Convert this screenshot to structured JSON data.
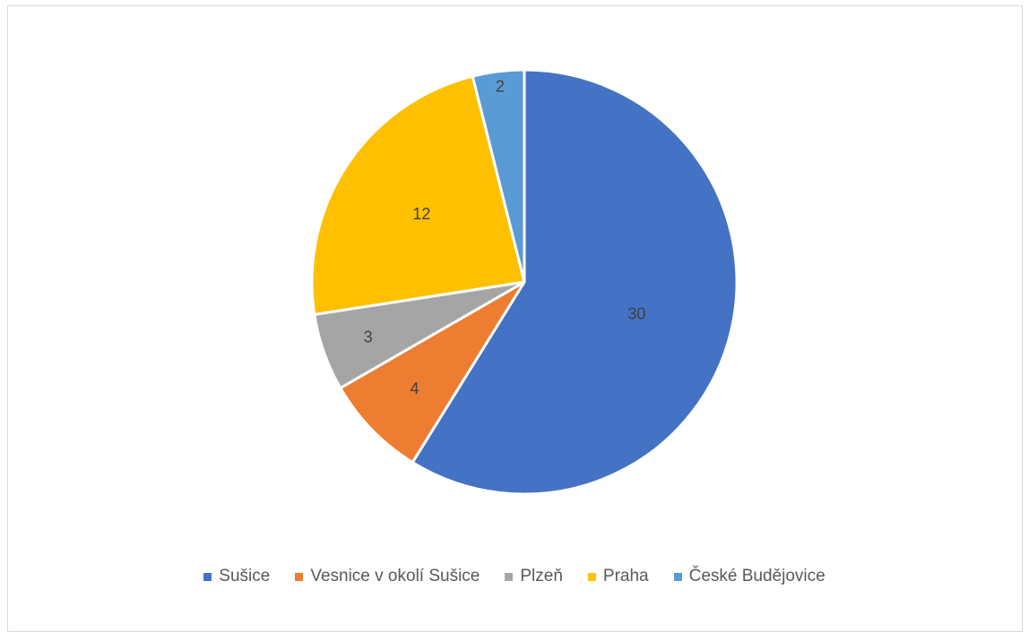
{
  "chart_data": {
    "type": "pie",
    "title": "",
    "categories": [
      "Sušice",
      "Vesnice v okolí Sušice",
      "Plzeň",
      "Praha",
      "České Budějovice"
    ],
    "values": [
      30,
      4,
      3,
      12,
      2
    ],
    "colors": [
      "#4472C4",
      "#ED7D31",
      "#A5A5A5",
      "#FFC000",
      "#5B9BD5"
    ],
    "data_labels": [
      "30",
      "4",
      "3",
      "12",
      "2"
    ],
    "start_angle_deg": 0,
    "direction": "clockwise",
    "legend_position": "bottom"
  }
}
